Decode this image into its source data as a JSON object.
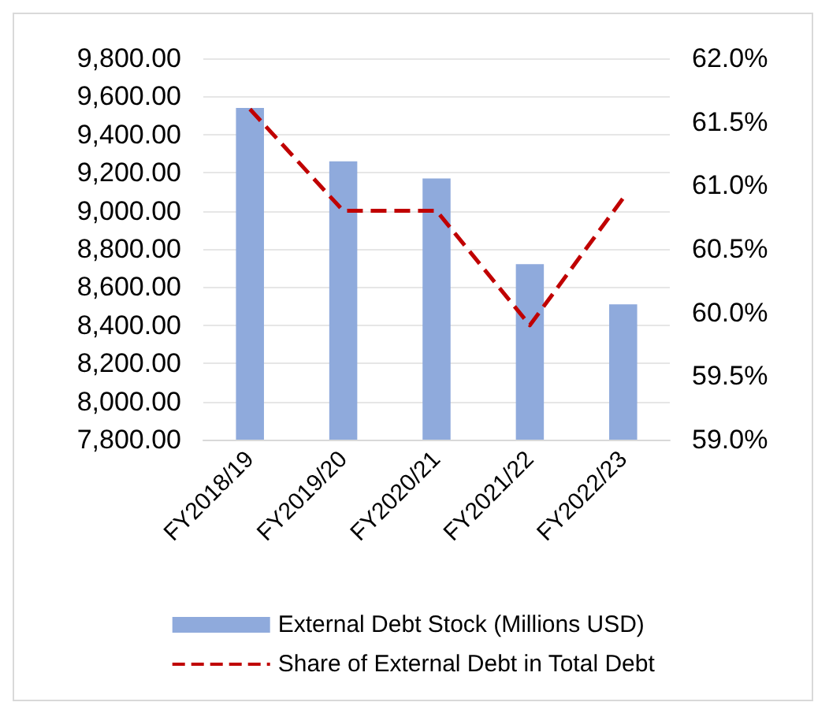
{
  "chart_data": {
    "type": "bar",
    "categories": [
      "FY2018/19",
      "FY2019/20",
      "FY2020/21",
      "FY2021/22",
      "FY2022/23"
    ],
    "series": [
      {
        "name": "External Debt Stock (Millions USD)",
        "color": "#8faadc",
        "values": [
          9540,
          9260,
          9170,
          8720,
          8510
        ]
      },
      {
        "name": "Share of External Debt in Total Debt",
        "type": "line",
        "axis": "y2",
        "color": "#c00000",
        "line_style": "dashed",
        "values": [
          61.6,
          60.8,
          60.8,
          59.9,
          60.9
        ]
      }
    ],
    "ylim": [
      7800,
      9800
    ],
    "yticks": [
      {
        "value": 7800,
        "label": "7,800.00"
      },
      {
        "value": 8000,
        "label": "8,000.00"
      },
      {
        "value": 8200,
        "label": "8,200.00"
      },
      {
        "value": 8400,
        "label": "8,400.00"
      },
      {
        "value": 8600,
        "label": "8,600.00"
      },
      {
        "value": 8800,
        "label": "8,800.00"
      },
      {
        "value": 9000,
        "label": "9,000.00"
      },
      {
        "value": 9200,
        "label": "9,200.00"
      },
      {
        "value": 9400,
        "label": "9,400.00"
      },
      {
        "value": 9600,
        "label": "9,600.00"
      },
      {
        "value": 9800,
        "label": "9,800.00"
      }
    ],
    "y2lim": [
      59,
      62
    ],
    "y2ticks": [
      {
        "value": 59,
        "label": "59.0%"
      },
      {
        "value": 59.5,
        "label": "59.5%"
      },
      {
        "value": 60,
        "label": "60.0%"
      },
      {
        "value": 60.5,
        "label": "60.5%"
      },
      {
        "value": 61,
        "label": "61.0%"
      },
      {
        "value": 61.5,
        "label": "61.5%"
      },
      {
        "value": 62,
        "label": "62.0%"
      }
    ],
    "grid": "y",
    "legend": "bottom",
    "marker": "none"
  }
}
